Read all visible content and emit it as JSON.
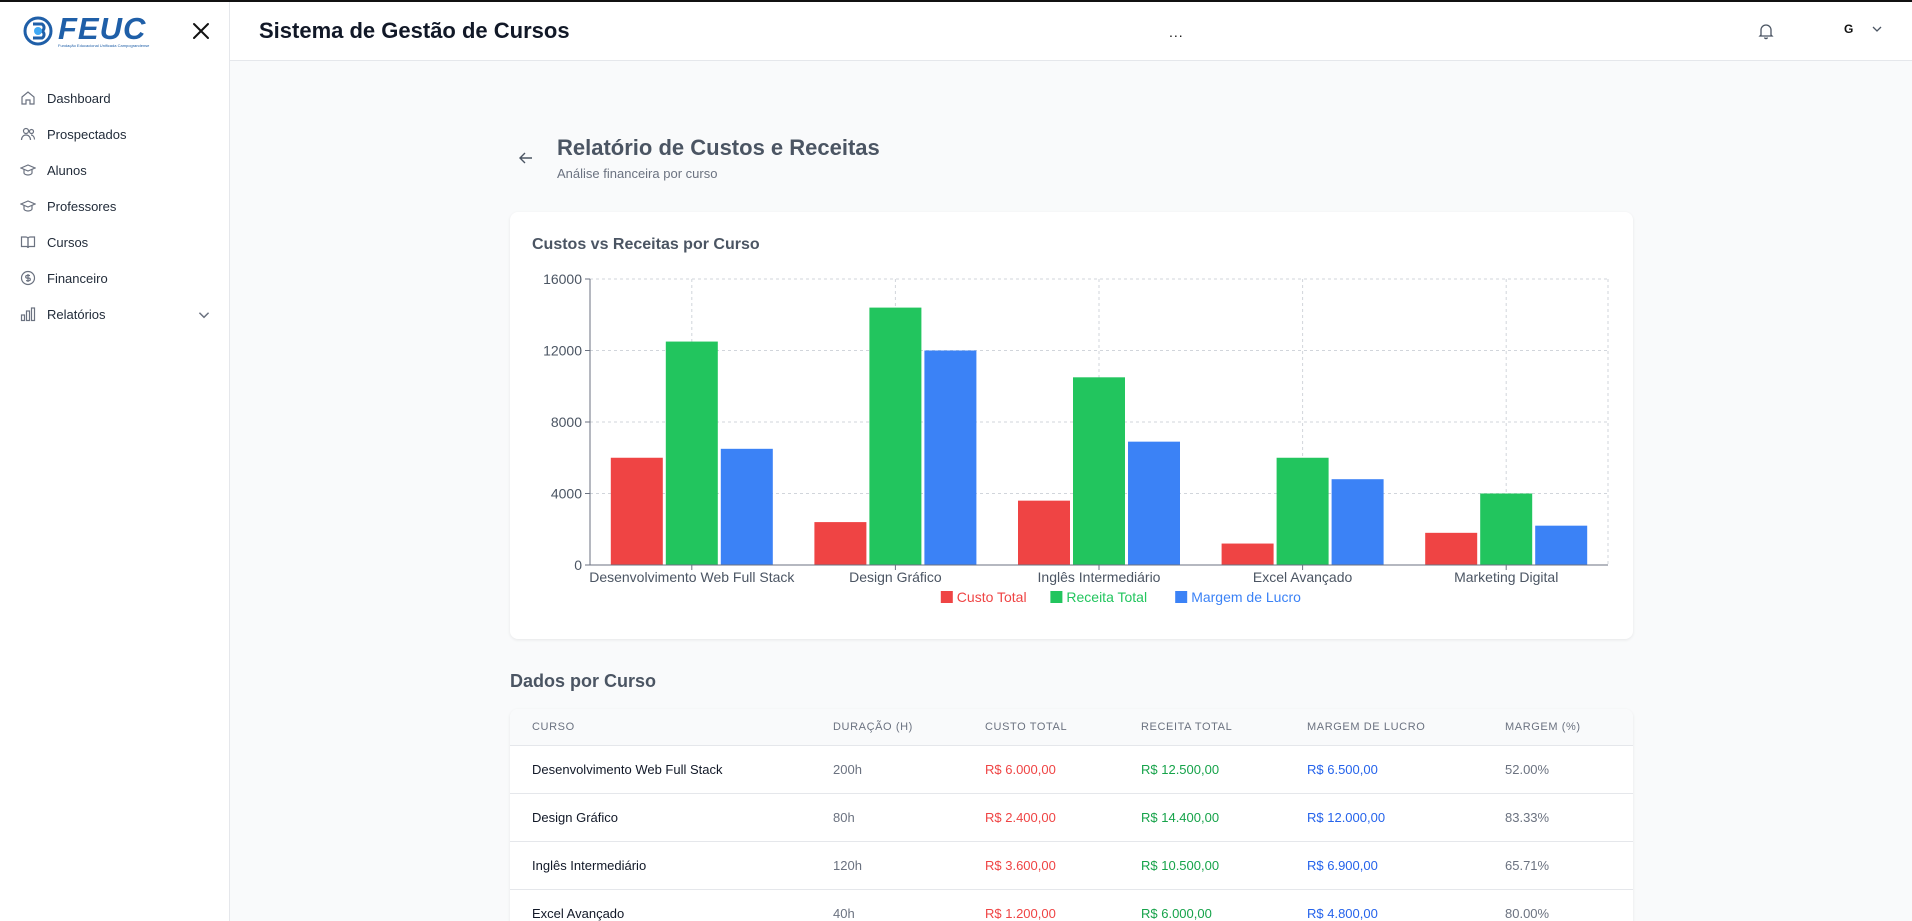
{
  "brand": {
    "logo_text": "FEUC",
    "logo_subtitle": "Fundação Educacional Unificada Campograndense"
  },
  "sidebar": {
    "items": [
      {
        "label": "Dashboard",
        "icon": "home-icon"
      },
      {
        "label": "Prospectados",
        "icon": "users-icon"
      },
      {
        "label": "Alunos",
        "icon": "graduation-cap-icon"
      },
      {
        "label": "Professores",
        "icon": "graduation-cap-icon"
      },
      {
        "label": "Cursos",
        "icon": "book-icon"
      },
      {
        "label": "Financeiro",
        "icon": "dollar-circle-icon"
      },
      {
        "label": "Relatórios",
        "icon": "bar-chart-icon"
      }
    ]
  },
  "header": {
    "title": "Sistema de Gestão de Cursos",
    "dots": "...",
    "user_initial": "G"
  },
  "page": {
    "title": "Relatório de Custos e Receitas",
    "subtitle": "Análise financeira por curso"
  },
  "chart_card": {
    "title": "Custos vs Receitas por Curso"
  },
  "chart_data": {
    "type": "bar",
    "categories": [
      "Desenvolvimento Web Full Stack",
      "Design Gráfico",
      "Inglês Intermediário",
      "Excel Avançado",
      "Marketing Digital"
    ],
    "series": [
      {
        "name": "Custo Total",
        "color": "#ef4444",
        "values": [
          6000,
          2400,
          3600,
          1200,
          1800
        ]
      },
      {
        "name": "Receita Total",
        "color": "#22c55e",
        "values": [
          12500,
          14400,
          10500,
          6000,
          4000
        ]
      },
      {
        "name": "Margem de Lucro",
        "color": "#3b82f6",
        "values": [
          6500,
          12000,
          6900,
          4800,
          2200
        ]
      }
    ],
    "yticks": [
      0,
      4000,
      8000,
      12000,
      16000
    ],
    "ylim": [
      0,
      16000
    ],
    "grid": true,
    "legend": "bottom-center"
  },
  "table": {
    "section_title": "Dados por Curso",
    "columns": [
      "Curso",
      "Duração (h)",
      "Custo Total",
      "Receita Total",
      "Margem de Lucro",
      "Margem (%)"
    ],
    "rows": [
      [
        "Desenvolvimento Web Full Stack",
        "200h",
        "R$ 6.000,00",
        "R$ 12.500,00",
        "R$ 6.500,00",
        "52.00%"
      ],
      [
        "Design Gráfico",
        "80h",
        "R$ 2.400,00",
        "R$ 14.400,00",
        "R$ 12.000,00",
        "83.33%"
      ],
      [
        "Inglês Intermediário",
        "120h",
        "R$ 3.600,00",
        "R$ 10.500,00",
        "R$ 6.900,00",
        "65.71%"
      ],
      [
        "Excel Avançado",
        "40h",
        "R$ 1.200,00",
        "R$ 6.000,00",
        "R$ 4.800,00",
        "80.00%"
      ]
    ]
  }
}
